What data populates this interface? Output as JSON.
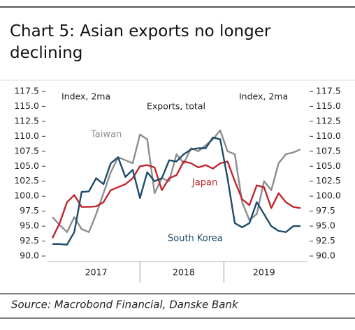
{
  "chart_data": {
    "type": "line",
    "title": "Chart 5: Asian exports no longer declining",
    "source": "Source: Macrobond Financial, Danske Bank",
    "annotations": [
      "Index, 2ma",
      "Exports, total",
      "Index, 2ma"
    ],
    "categories": [
      null,
      null,
      null,
      null,
      null,
      null,
      "2017",
      null,
      null,
      null,
      null,
      null,
      null,
      null,
      null,
      null,
      null,
      null,
      "2018",
      null,
      null,
      null,
      null,
      null,
      null,
      null,
      null,
      null,
      null,
      "2019",
      null,
      null,
      null,
      null,
      null
    ],
    "series": [
      {
        "name": "Taiwan",
        "color": "#8d8d8d",
        "values": [
          96.5,
          95.2,
          94,
          96.5,
          94.5,
          94,
          97,
          100.5,
          104,
          106.5,
          106,
          105.5,
          110.3,
          109.5,
          100.5,
          103,
          102.5,
          107,
          105.5,
          108,
          107.5,
          108.5,
          109.5,
          111,
          107.5,
          107,
          99,
          96,
          97,
          102.5,
          101,
          105.5,
          107,
          107.3,
          107.8
        ]
      },
      {
        "name": "Japan",
        "color": "#c0272d",
        "values": [
          93,
          95.5,
          99,
          100.2,
          98.2,
          98.2,
          98.3,
          99,
          101,
          101.5,
          102,
          103,
          105,
          105.2,
          104.8,
          101,
          103,
          103.5,
          105.8,
          105.5,
          104.8,
          105.2,
          104.6,
          105.5,
          105.8,
          102.5,
          99.5,
          98.5,
          101.8,
          101.5,
          98,
          100.5,
          99,
          98.2,
          98
        ]
      },
      {
        "name": "South Korea",
        "color": "#1d4b6b",
        "values": [
          92,
          92,
          91.9,
          94,
          100.7,
          100.8,
          103,
          102,
          105.5,
          106.5,
          103.2,
          104.4,
          99.7,
          104,
          102.5,
          103,
          106,
          105.8,
          107,
          107.8,
          108,
          108,
          109.8,
          109.5,
          103,
          95.5,
          94.8,
          95.5,
          99,
          97,
          95,
          94.2,
          94,
          95,
          95
        ]
      }
    ],
    "ylim": [
      90,
      117.5
    ],
    "yticks": [
      {
        "value": 90,
        "label": "90.0"
      },
      92.5,
      {
        "value": 95,
        "label": "95.0"
      },
      97.5,
      {
        "value": 100,
        "label": "100.0"
      },
      102.5,
      {
        "value": 105,
        "label": "105.0"
      },
      107.5,
      {
        "value": 110,
        "label": "110.0"
      },
      112.5,
      {
        "value": 115,
        "label": "115.0"
      },
      117.5
    ],
    "y2lim": [
      90,
      117.5
    ],
    "y2ticks": [
      {
        "value": 90,
        "label": "90.0"
      },
      92.5,
      {
        "value": 95,
        "label": "95.0"
      },
      97.5,
      {
        "value": 100,
        "label": "100.0"
      },
      102.5,
      {
        "value": 105,
        "label": "105.0"
      },
      107.5,
      {
        "value": 110,
        "label": "110.0"
      },
      112.5,
      {
        "value": 115,
        "label": "115.0"
      },
      117.5
    ]
  }
}
